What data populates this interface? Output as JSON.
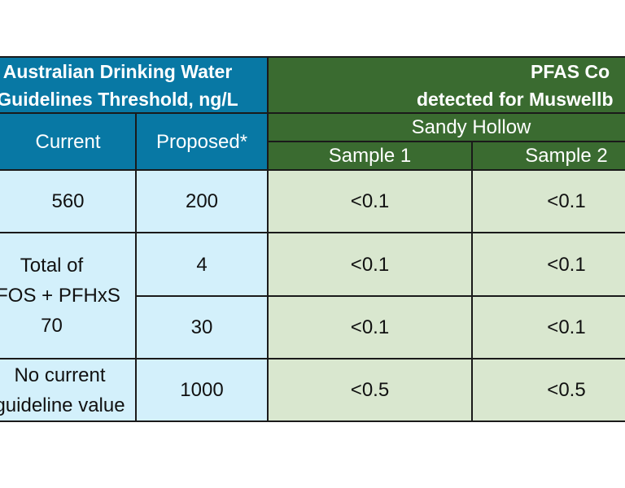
{
  "threshold_header": {
    "line1": "Australian Drinking Water",
    "line2": "Guidelines Threshold, ng/L"
  },
  "pfas_header": {
    "line1": "PFAS Co",
    "line2": "detected for Muswellb"
  },
  "columns": {
    "current": "Current",
    "proposed": "Proposed*",
    "site": "Sandy Hollow",
    "sample1": "Sample 1",
    "sample2": "Sample 2"
  },
  "rows": {
    "r1": {
      "current": "560",
      "proposed": "200",
      "s1": "<0.1",
      "s2": "<0.1"
    },
    "r2": {
      "current_line1": "Total of",
      "current_line2": "PFOS + PFHxS",
      "current_line3": "70",
      "proposed": "4",
      "s1": "<0.1",
      "s2": "<0.1"
    },
    "r3": {
      "proposed": "30",
      "s1": "<0.1",
      "s2": "<0.1"
    },
    "r4": {
      "current_line1": "No current",
      "current_line2": "guideline value",
      "proposed": "1000",
      "s1": "<0.5",
      "s2": "<0.5"
    }
  },
  "colors": {
    "blue_header": "#0878a4",
    "green_header": "#3a6b30",
    "blue_body": "#d3f0fb",
    "green_body": "#d9e7cf"
  }
}
